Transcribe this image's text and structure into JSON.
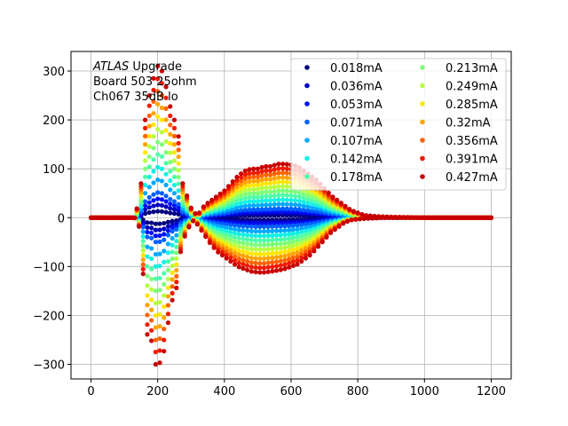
{
  "chart_data": {
    "type": "scatter",
    "title": "",
    "xlabel": "",
    "ylabel": "",
    "xlim": [
      -60,
      1260
    ],
    "ylim": [
      -330,
      340
    ],
    "xticks": [
      0,
      200,
      400,
      600,
      800,
      1000,
      1200
    ],
    "yticks": [
      -300,
      -200,
      -100,
      0,
      100,
      200,
      300
    ],
    "xtick_labels": [
      "0",
      "200",
      "400",
      "600",
      "800",
      "1000",
      "1200"
    ],
    "ytick_labels": [
      "−300",
      "−200",
      "−100",
      "0",
      "100",
      "200",
      "300"
    ],
    "grid": true,
    "legend_position": "upper-right",
    "legend_columns": 2,
    "annotation": {
      "lines": [
        {
          "italic": "ATLAS",
          "rest": " Upgrade"
        },
        {
          "italic": "",
          "rest": " Board 503 25ohm"
        },
        {
          "italic": "",
          "rest": " Ch067 35dB lo"
        }
      ]
    },
    "pulse_shape": {
      "description_of_samples": "sample time in ns vs amplitude, points every 6.25 ns",
      "x_start": 0,
      "x_end": 1200,
      "x_step": 6.25,
      "knots_x": [
        0,
        130,
        140,
        150,
        160,
        170,
        180,
        190,
        200,
        210,
        220,
        230,
        240,
        250,
        260,
        270,
        280,
        290,
        300,
        310,
        320,
        340,
        360,
        380,
        400,
        420,
        440,
        460,
        480,
        500,
        520,
        540,
        560,
        580,
        600,
        620,
        640,
        660,
        680,
        700,
        720,
        740,
        760,
        780,
        800,
        820,
        850,
        880,
        920,
        1000,
        1200
      ],
      "pos_envelope": [
        0,
        0,
        25,
        70,
        180,
        260,
        240,
        300,
        310,
        305,
        285,
        250,
        220,
        200,
        195,
        80,
        60,
        40,
        20,
        10,
        5,
        25,
        35,
        45,
        55,
        70,
        85,
        95,
        100,
        100,
        105,
        105,
        110,
        110,
        108,
        105,
        95,
        85,
        75,
        60,
        45,
        35,
        25,
        15,
        10,
        5,
        3,
        2,
        1,
        0,
        0
      ],
      "neg_envelope": [
        0,
        0,
        -5,
        -40,
        -160,
        -250,
        -245,
        -300,
        -300,
        -295,
        -270,
        -220,
        -180,
        -150,
        -140,
        -60,
        -40,
        -25,
        -10,
        -5,
        -15,
        -35,
        -55,
        -70,
        -80,
        -90,
        -100,
        -105,
        -110,
        -112,
        -112,
        -110,
        -108,
        -105,
        -100,
        -95,
        -85,
        -75,
        -60,
        -45,
        -30,
        -20,
        -10,
        -5,
        -3,
        -2,
        -1,
        0,
        0,
        0,
        0
      ]
    },
    "series": [
      {
        "name": "0.018mA",
        "scale": 0.042,
        "color": "#00007f"
      },
      {
        "name": "0.036mA",
        "scale": 0.084,
        "color": "#0000c0"
      },
      {
        "name": "0.053mA",
        "scale": 0.124,
        "color": "#0010ff"
      },
      {
        "name": "0.071mA",
        "scale": 0.166,
        "color": "#0060ff"
      },
      {
        "name": "0.107mA",
        "scale": 0.25,
        "color": "#00a8ff"
      },
      {
        "name": "0.142mA",
        "scale": 0.333,
        "color": "#13f0e3"
      },
      {
        "name": "0.178mA",
        "scale": 0.417,
        "color": "#4dffaa"
      },
      {
        "name": "0.213mA",
        "scale": 0.499,
        "color": "#7dff7a"
      },
      {
        "name": "0.249mA",
        "scale": 0.583,
        "color": "#b7ff40"
      },
      {
        "name": "0.285mA",
        "scale": 0.667,
        "color": "#ffe600"
      },
      {
        "name": "0.32mA",
        "scale": 0.749,
        "color": "#ffa400"
      },
      {
        "name": "0.356mA",
        "scale": 0.834,
        "color": "#ff6200"
      },
      {
        "name": "0.391mA",
        "scale": 0.916,
        "color": "#f01b00"
      },
      {
        "name": "0.427mA",
        "scale": 1.0,
        "color": "#c80000"
      }
    ]
  }
}
